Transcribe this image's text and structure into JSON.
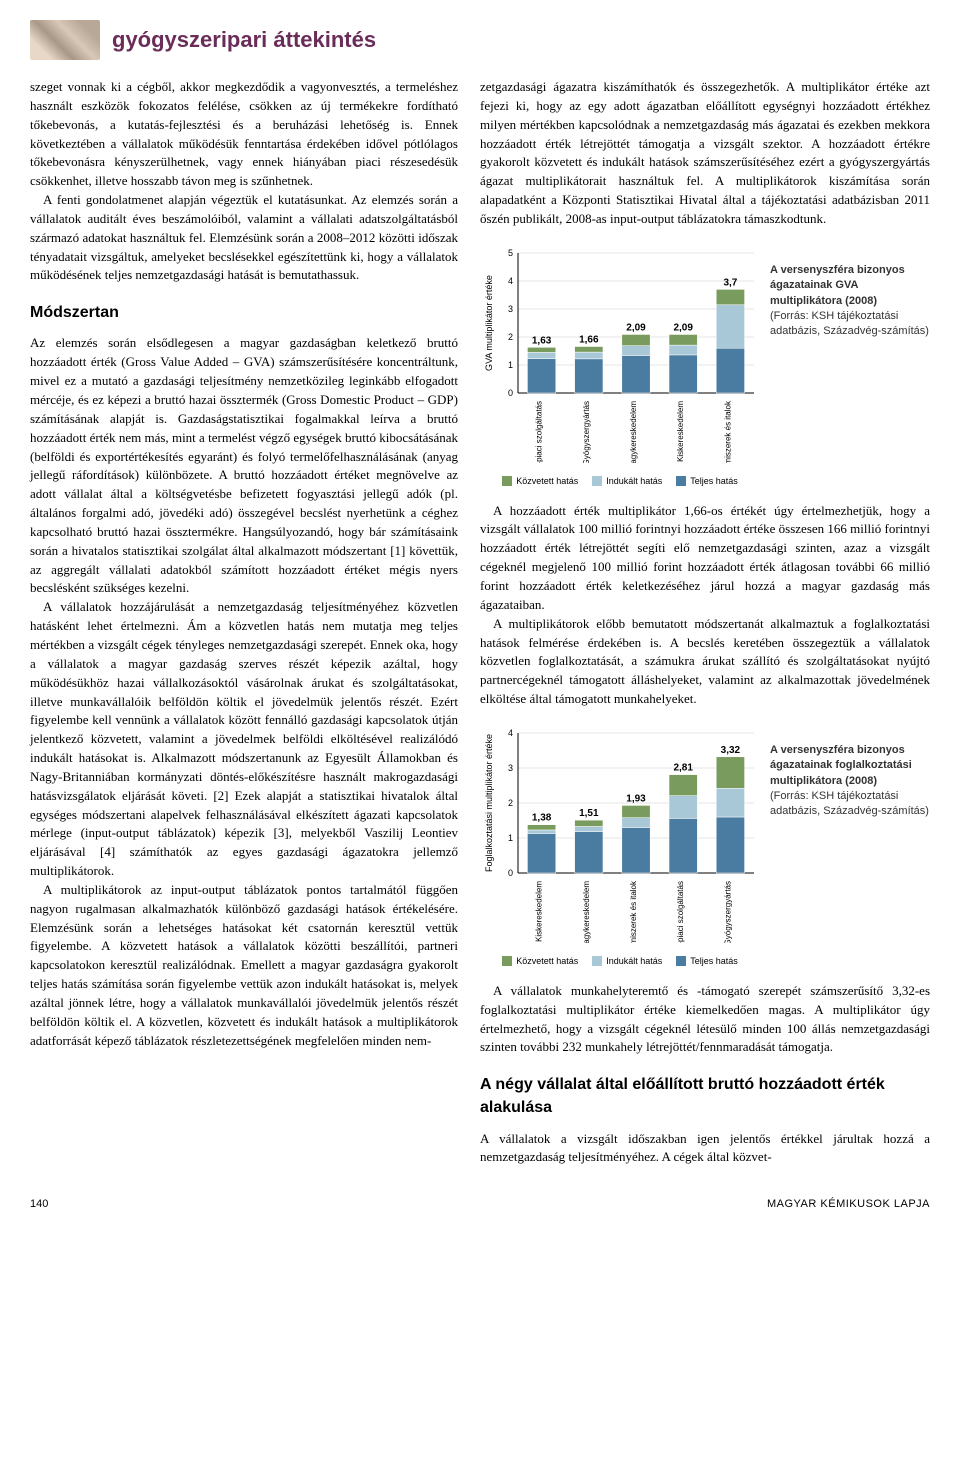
{
  "header": {
    "title": "gyógyszeripari áttekintés"
  },
  "left_col": {
    "p1": "szeget vonnak ki a cégből, akkor megkezdődik a vagyonvesztés, a termeléshez használt eszközök fokozatos felélése, csökken az új termékekre fordítható tőkebevonás, a kutatás-fejlesztési és a beruházási lehetőség is. Ennek következtében a vállalatok működésük fenntartása érdekében idővel pótlólagos tőkebevonásra kényszerülhetnek, vagy ennek hiányában piaci részesedésük csökkenhet, illetve hosszabb távon meg is szűnhetnek.",
    "p2": "A fenti gondolatmenet alapján végeztük el kutatásunkat. Az elemzés során a vállalatok auditált éves beszámolóiból, valamint a vállalati adatszolgáltatásból származó adatokat használtuk fel. Elemzésünk során a 2008–2012 közötti időszak tényadatait vizsgáltuk, amelyeket becslésekkel egészítettünk ki, hogy a vállalatok működésének teljes nemzetgazdasági hatását is bemutathassuk.",
    "h_method": "Módszertan",
    "p3": "Az elemzés során elsődlegesen a magyar gazdaságban keletkező bruttó hozzáadott érték (Gross Value Added – GVA) számszerűsítésére koncentráltunk, mivel ez a mutató a gazdasági teljesítmény nemzetközileg leginkább elfogadott mércéje, és ez képezi a bruttó hazai össztermék (Gross Domestic Product – GDP) számításának alapját is. Gazdaságstatisztikai fogalmakkal leírva a bruttó hozzáadott érték nem más, mint a termelést végző egységek bruttó kibocsátásának (belföldi és exportértékesítés egyaránt) és folyó termelőfelhasználásának (anyag jellegű ráfordítások) különbözete. A bruttó hozzáadott értéket megnövelve az adott vállalat által a költségvetésbe befizetett fogyasztási jellegű adók (pl. általános forgalmi adó, jövedéki adó) összegével becslést nyerhetünk a céghez kapcsolható bruttó hazai össztermékre. Hangsúlyozandó, hogy bár számításaink során a hivatalos statisztikai szolgálat által alkalmazott módszertant [1] követtük, az aggregált vállalati adatokból számított hozzáadott értéket mégis nyers becslésként szükséges kezelni.",
    "p4": "A vállalatok hozzájárulását a nemzetgazdaság teljesítményéhez közvetlen hatásként lehet értelmezni. Ám a közvetlen hatás nem mutatja meg teljes mértékben a vizsgált cégek tényleges nemzetgazdasági szerepét. Ennek oka, hogy a vállalatok a magyar gazdaság szerves részét képezik azáltal, hogy működésükhöz hazai vállalkozásoktól vásárolnak árukat és szolgáltatásokat, illetve munkavállalóik belföldön költik el jövedelmük jelentős részét. Ezért figyelembe kell vennünk a vállalatok között fennálló gazdasági kapcsolatok útján jelentkező közvetett, valamint a jövedelmek belföldi elköltésével realizálódó indukált hatásokat is. Alkalmazott módszertanunk az Egyesült Államokban és Nagy-Britanniában kormányzati döntés-előkészítésre használt makrogazdasági hatásvizsgálatok eljárását követi. [2] Ezek alapját a statisztikai hivatalok által egységes módszertani alapelvek felhasználásával elkészített ágazati kapcsolatok mérlege (input-output táblázatok) képezik [3], melyekből Vaszilij Leontiev eljárásával [4] számíthatók az egyes gazdasági ágazatokra jellemző multiplikátorok.",
    "p5": "A multiplikátorok az input-output táblázatok pontos tartalmától függően nagyon rugalmasan alkalmazhatók különböző gazdasági hatások értékelésére. Elemzésünk során a lehetséges hatásokat két csatornán keresztül vettük figyelembe. A közvetett hatások a vállalatok közötti beszállítói, partneri kapcsolatokon keresztül realizálódnak. Emellett a magyar gazdaságra gyakorolt teljes hatás számítása során figyelembe vettük azon indukált hatásokat is, melyek azáltal jönnek létre, hogy a vállalatok munkavállalói jövedelmük jelentős részét belföldön költik el. A közvetlen, közvetett és indukált hatások a multiplikátorok adatforrását képező táblázatok részletezettségének megfelelően minden nem-"
  },
  "right_col": {
    "p1": "zetgazdasági ágazatra kiszámíthatók és összegezhetők. A multiplikátor értéke azt fejezi ki, hogy az egy adott ágazatban előállított egységnyi hozzáadott értékhez milyen mértékben kapcsolódnak a nemzetgazdaság más ágazatai és ezekben mekkora hozzáadott érték létrejöttét támogatja a vizsgált szektor. A hozzáadott értékre gyakorolt közvetett és indukált hatások számszerűsítéséhez ezért a gyógyszergyártás ágazat multiplikátorait használtuk fel. A multiplikátorok kiszámítása során alapadatként a Központi Statisztikai Hivatal által a tájékoztatási adatbázisban 2011 őszén publikált, 2008-as input-output táblázatokra támaszkodtunk.",
    "p2": "A hozzáadott érték multiplikátor 1,66-os értékét úgy értelmezhetjük, hogy a vizsgált vállalatok 100 millió forintnyi hozzáadott értéke összesen 166 millió forintnyi hozzáadott érték létrejöttét segíti elő nemzetgazdasági szinten, azaz a vizsgált cégeknél megjelenő 100 millió forint hozzáadott érték átlagosan további 66 millió forint hozzáadott érték keletkezéséhez járul hozzá a magyar gazdaság más ágazataiban.",
    "p3": "A multiplikátorok előbb bemutatott módszertanát alkalmaztuk a foglalkoztatási hatások felmérése érdekében is. A becslés keretében összegeztük a vállalatok közvetlen foglalkoztatását, a számukra árukat szállító és szolgáltatásokat nyújtó partnercégeknél támogatott álláshelyeket, valamint az alkalmazottak jövedelmének elköltése által támogatott munkahelyeket.",
    "p4": "A vállalatok munkahelyteremtő és -támogató szerepét számszerűsítő 3,32-es foglalkoztatási multiplikátor értéke kiemelkedően magas. A multiplikátor úgy értelmezhető, hogy a vizsgált cégeknél létesülő minden 100 állás nemzetgazdasági szinten további 232 munkahely létrejöttét/fennmaradását támogatja.",
    "h_four": "A négy vállalat által előállított bruttó hozzáadott érték alakulása",
    "p5": "A vállalatok a vizsgált időszakban igen jelentős értékkel járultak hozzá a nemzetgazdaság teljesítményéhez. A cégek által közvet-"
  },
  "chart1": {
    "type": "stacked-bar",
    "ylabel": "GVA multiplikátor értéke",
    "ylim": [
      0,
      5
    ],
    "ytick_step": 1,
    "categories": [
      "Munkaerő-piaci szolgáltatás",
      "Gyógyszergyártás",
      "Nagykereskedelem",
      "Kiskereskedelem",
      "Élelmiszerek és italok"
    ],
    "values_total": [
      1.63,
      1.66,
      2.09,
      2.09,
      3.7
    ],
    "segments": {
      "kozvetett": [
        0.18,
        0.2,
        0.4,
        0.38,
        0.55
      ],
      "indukalt": [
        0.22,
        0.24,
        0.35,
        0.35,
        1.55
      ],
      "teljes": [
        1.23,
        1.22,
        1.34,
        1.36,
        1.6
      ]
    },
    "colors": {
      "kozvetett": "#7a9b5e",
      "indukalt": "#a8c8d8",
      "teljes": "#4a7ba0"
    },
    "legend": [
      "Közvetett hatás",
      "Indukált hatás",
      "Teljes hatás"
    ],
    "caption_bold": "A versenyszféra bizonyos ágazatainak GVA multiplikátora (2008)",
    "caption_src": "(Forrás: KSH tájékoztatási adatbázis, Századvég-számítás)"
  },
  "chart2": {
    "type": "stacked-bar",
    "ylabel": "Foglalkoztatási multiplikátor értéke",
    "ylim": [
      0,
      4
    ],
    "ytick_step": 1,
    "categories": [
      "Kiskereskedelem",
      "Nagykereskedelem",
      "Élelmiszerek és italok",
      "Munkaerő-piaci szolgáltatás",
      "Gyógyszergyártás"
    ],
    "values_total": [
      1.38,
      1.51,
      1.93,
      2.81,
      3.32
    ],
    "segments": {
      "kozvetett": [
        0.15,
        0.18,
        0.35,
        0.6,
        0.9
      ],
      "indukalt": [
        0.1,
        0.15,
        0.28,
        0.65,
        0.82
      ],
      "teljes": [
        1.13,
        1.18,
        1.3,
        1.56,
        1.6
      ]
    },
    "colors": {
      "kozvetett": "#7a9b5e",
      "indukalt": "#a8c8d8",
      "teljes": "#4a7ba0"
    },
    "legend": [
      "Közvetett hatás",
      "Indukált hatás",
      "Teljes hatás"
    ],
    "caption_bold": "A versenyszféra bizonyos ágazatainak foglalkoztatási multiplikátora (2008)",
    "caption_src": "(Forrás: KSH tájékoztatási adatbázis, Századvég-számítás)"
  },
  "footer": {
    "page": "140",
    "journal": "MAGYAR KÉMIKUSOK LAPJA"
  }
}
